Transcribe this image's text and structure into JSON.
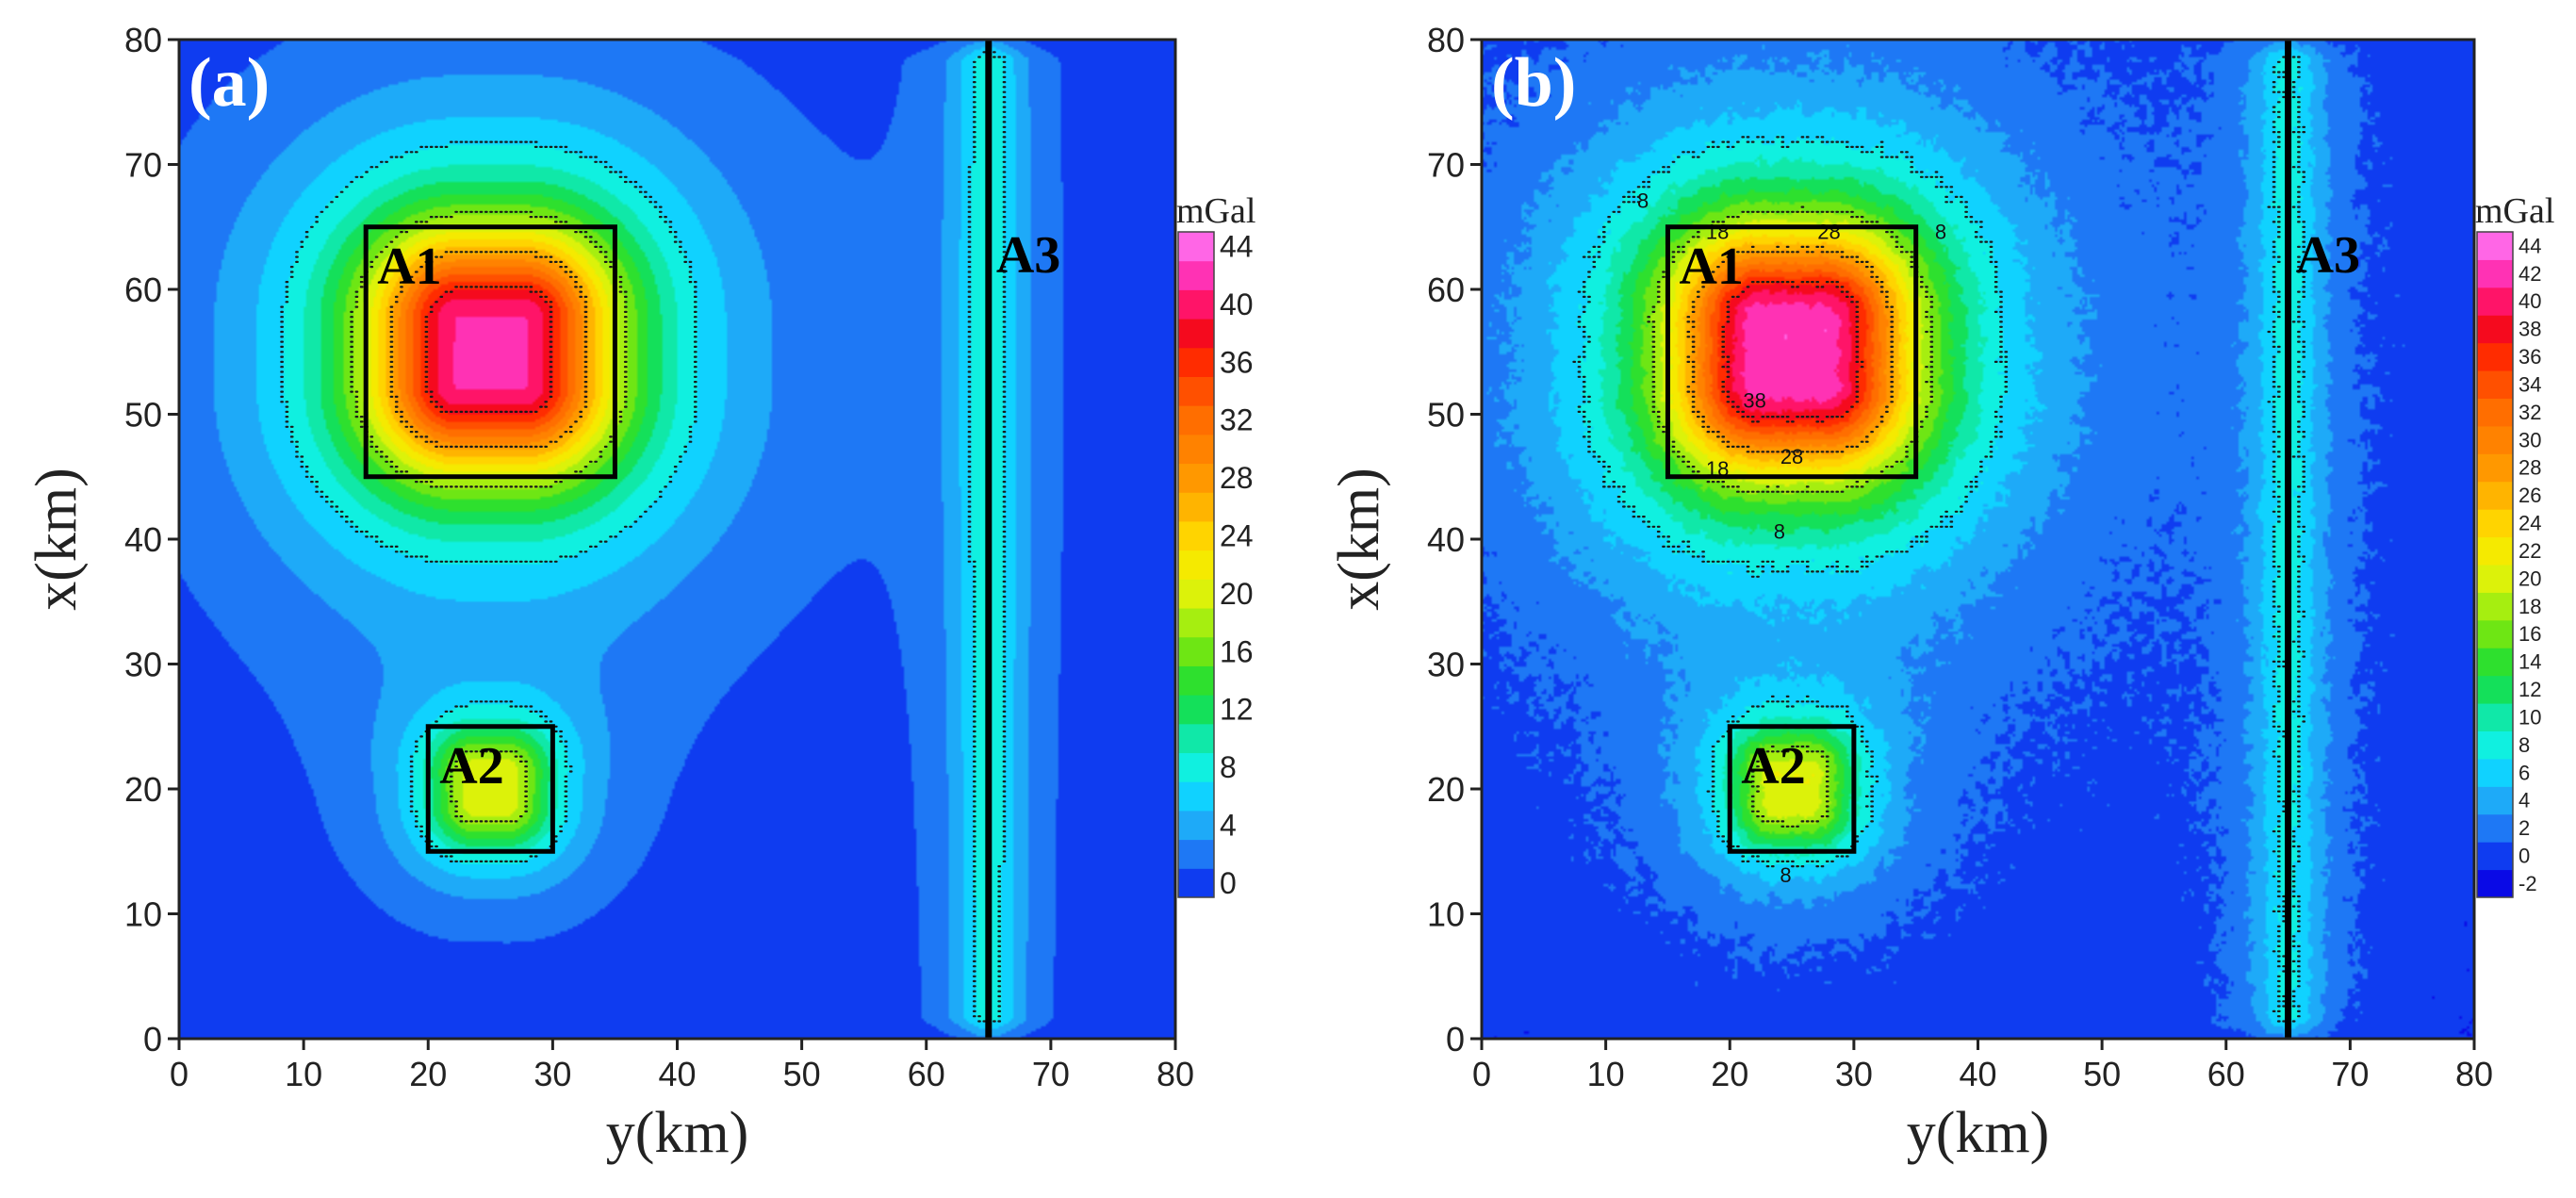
{
  "chart_data": [
    {
      "type": "heatmap",
      "panel_label": "(a)",
      "xlabel": "y(km)",
      "ylabel": "x(km)",
      "xlim": [
        0,
        80
      ],
      "ylim": [
        0,
        80
      ],
      "x_ticks": [
        0,
        10,
        20,
        30,
        40,
        50,
        60,
        70,
        80
      ],
      "y_ticks": [
        0,
        10,
        20,
        30,
        40,
        50,
        60,
        70,
        80
      ],
      "colorbar": {
        "unit": "mGal",
        "labels": [
          0,
          4,
          8,
          12,
          16,
          20,
          24,
          28,
          32,
          36,
          40,
          44
        ],
        "levels": [
          0,
          2,
          4,
          6,
          8,
          10,
          12,
          14,
          16,
          18,
          20,
          22,
          24,
          26,
          28,
          30,
          32,
          34,
          36,
          38,
          40,
          42,
          44,
          46
        ]
      },
      "noisy": false,
      "contour_labels": [],
      "sources": [
        {
          "name": "A1",
          "type": "prism",
          "y_range": [
            15,
            35
          ],
          "x_range": [
            45,
            65
          ],
          "peak_mGal": 42
        },
        {
          "name": "A2",
          "type": "prism",
          "y_range": [
            20,
            30
          ],
          "x_range": [
            15,
            25
          ],
          "peak_mGal": 20
        },
        {
          "name": "A3",
          "type": "line",
          "y": 65,
          "x_range": [
            0,
            80
          ],
          "peak_mGal": 9
        }
      ]
    },
    {
      "type": "heatmap",
      "panel_label": "(b)",
      "xlabel": "y(km)",
      "ylabel": "x(km)",
      "xlim": [
        0,
        80
      ],
      "ylim": [
        0,
        80
      ],
      "x_ticks": [
        0,
        10,
        20,
        30,
        40,
        50,
        60,
        70,
        80
      ],
      "y_ticks": [
        0,
        10,
        20,
        30,
        40,
        50,
        60,
        70,
        80
      ],
      "colorbar": {
        "unit": "mGal",
        "labels": [
          -2,
          0,
          2,
          4,
          6,
          8,
          10,
          12,
          14,
          16,
          18,
          20,
          22,
          24,
          26,
          28,
          30,
          32,
          34,
          36,
          38,
          40,
          42,
          44
        ],
        "levels": [
          -2,
          0,
          2,
          4,
          6,
          8,
          10,
          12,
          14,
          16,
          18,
          20,
          22,
          24,
          26,
          28,
          30,
          32,
          34,
          36,
          38,
          40,
          42,
          44,
          46
        ]
      },
      "noisy": true,
      "contour_labels": [
        {
          "text": "8",
          "y": 13,
          "x": 67
        },
        {
          "text": "18",
          "y": 19,
          "x": 64.5
        },
        {
          "text": "28",
          "y": 28,
          "x": 64.5
        },
        {
          "text": "8",
          "y": 37,
          "x": 64.5
        },
        {
          "text": "28",
          "y": 25,
          "x": 46.5
        },
        {
          "text": "18",
          "y": 19,
          "x": 45.5
        },
        {
          "text": "8",
          "y": 24,
          "x": 40.5
        },
        {
          "text": "8",
          "y": 24.5,
          "x": 13
        },
        {
          "text": "38",
          "y": 22,
          "x": 51
        }
      ],
      "sources": [
        {
          "name": "A1",
          "type": "prism",
          "y_range": [
            15,
            35
          ],
          "x_range": [
            45,
            65
          ],
          "peak_mGal": 43
        },
        {
          "name": "A2",
          "type": "prism",
          "y_range": [
            20,
            30
          ],
          "x_range": [
            15,
            25
          ],
          "peak_mGal": 20
        },
        {
          "name": "A3",
          "type": "line",
          "y": 65,
          "x_range": [
            0,
            80
          ],
          "peak_mGal": 8
        }
      ]
    }
  ],
  "colors": {
    "stops": [
      [
        -2,
        "#0a0ae6"
      ],
      [
        0,
        "#0f3cf0"
      ],
      [
        2,
        "#1e78f5"
      ],
      [
        4,
        "#1eaaf8"
      ],
      [
        6,
        "#10d2ff"
      ],
      [
        8,
        "#10f0e0"
      ],
      [
        10,
        "#10e8a8"
      ],
      [
        12,
        "#14e05a"
      ],
      [
        14,
        "#2ee02e"
      ],
      [
        16,
        "#6ee614"
      ],
      [
        18,
        "#a6ee10"
      ],
      [
        20,
        "#dcf20a"
      ],
      [
        22,
        "#f5ea00"
      ],
      [
        24,
        "#ffd400"
      ],
      [
        26,
        "#ffb400"
      ],
      [
        28,
        "#ff9800"
      ],
      [
        30,
        "#ff8200"
      ],
      [
        32,
        "#ff6e00"
      ],
      [
        34,
        "#ff5000"
      ],
      [
        36,
        "#ff2c00"
      ],
      [
        38,
        "#f50a1e"
      ],
      [
        40,
        "#ff1468"
      ],
      [
        42,
        "#ff32b4"
      ],
      [
        44,
        "#ff66e6"
      ],
      [
        46,
        "#ffb0ff"
      ]
    ]
  }
}
